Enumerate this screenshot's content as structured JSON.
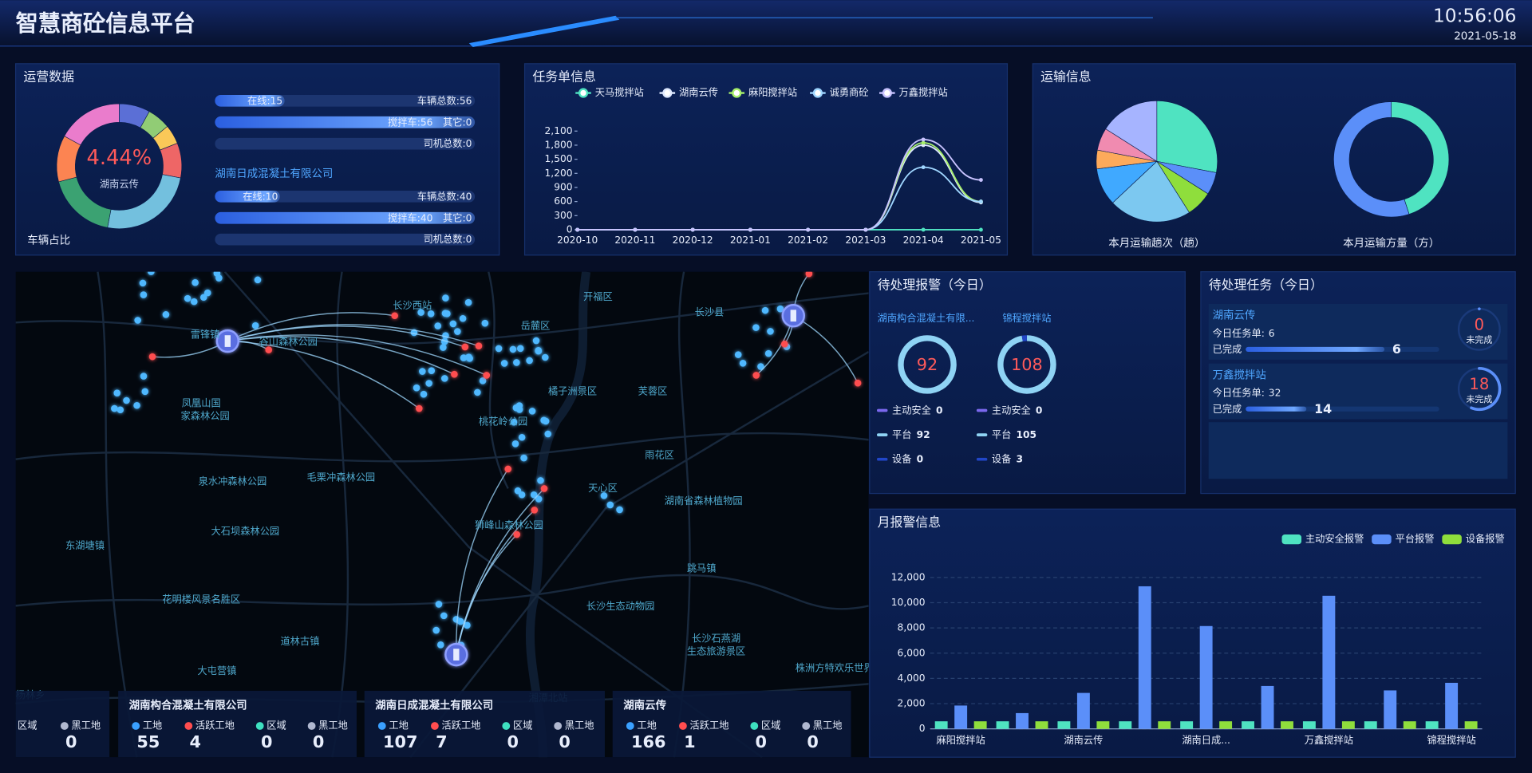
{
  "header": {
    "title": "智慧商砼信息平台",
    "time": "10:56:06",
    "date": "2021-05-18"
  },
  "operations": {
    "title": "运营数据",
    "groups": [
      {
        "online": {
          "label": "在线:",
          "value": 15
        },
        "total": {
          "label": "车辆总数:",
          "value": 56
        },
        "mixer": {
          "label": "搅拌车:",
          "value": 56
        },
        "other": {
          "label": "其它:",
          "value": 0
        },
        "drivers": {
          "label": "司机总数:",
          "value": 0
        }
      },
      {
        "name": "湖南日成混凝土有限公司",
        "online": {
          "label": "在线:",
          "value": 10
        },
        "total": {
          "label": "车辆总数:",
          "value": 40
        },
        "mixer": {
          "label": "搅拌车:",
          "value": 40
        },
        "other": {
          "label": "其它:",
          "value": 0
        },
        "drivers": {
          "label": "司机总数:",
          "value": 0
        }
      }
    ]
  },
  "transport": {
    "title": "运输信息"
  },
  "map": {
    "labels": [
      "长沙西站",
      "开福区",
      "长沙县",
      "岳麓区",
      "橘子洲景区",
      "芙蓉区",
      "桃花岭公园",
      "雨花区",
      "天心区",
      "湖南省森林植物园",
      "凤凰山国",
      "家森林公园",
      "泉水冲森林公园",
      "毛栗冲森林公园",
      "大石坝森林公园",
      "狮峰山森林公园",
      "花明楼风景名胜区",
      "长沙生态动物园",
      "长沙石燕湖",
      "生态旅游景区",
      "跳马镇",
      "道林古镇",
      "大屯营镇",
      "东湖塘镇",
      "株洲方特欢乐世界",
      "湘潭北站",
      "谷山森林公园",
      "雷锋镇",
      "杨林乡"
    ],
    "cards": [
      {
        "items": [
          {
            "label": "区域"
          },
          {
            "label": "黑工地",
            "value": 0
          }
        ]
      },
      {
        "name": "湖南构合混凝土有限公司",
        "items": [
          {
            "label": "工地",
            "value": 55
          },
          {
            "label": "活跃工地",
            "value": 4
          },
          {
            "label": "区域",
            "value": 0
          },
          {
            "label": "黑工地",
            "value": 0
          }
        ]
      },
      {
        "name": "湖南日成混凝土有限公司",
        "items": [
          {
            "label": "工地",
            "value": 107
          },
          {
            "label": "活跃工地",
            "value": 7
          },
          {
            "label": "区域",
            "value": 0
          },
          {
            "label": "黑工地",
            "value": 0
          }
        ]
      },
      {
        "name": "湖南云传",
        "items": [
          {
            "label": "工地",
            "value": 166
          },
          {
            "label": "活跃工地",
            "value": 1
          },
          {
            "label": "区域",
            "value": 0
          },
          {
            "label": "黑工地",
            "value": 0
          }
        ]
      }
    ]
  },
  "alarms": {
    "title": "待处理报警（今日）",
    "sites": [
      {
        "name": "湖南构合混凝土有限...",
        "total": 92,
        "items": [
          {
            "label": "主动安全",
            "value": 0
          },
          {
            "label": "平台",
            "value": 92
          },
          {
            "label": "设备",
            "value": 0
          }
        ]
      },
      {
        "name": "锦程搅拌站",
        "total": 108,
        "items": [
          {
            "label": "主动安全",
            "value": 0
          },
          {
            "label": "平台",
            "value": 105
          },
          {
            "label": "设备",
            "value": 3
          }
        ]
      }
    ]
  },
  "tasks": {
    "title": "待处理任务（今日）",
    "items": [
      {
        "name": "湖南云传",
        "total_label": "今日任务单:",
        "total": 6,
        "done_label": "已完成",
        "done": 6,
        "undone": 0,
        "undone_label": "未完成"
      },
      {
        "name": "万鑫搅拌站",
        "total_label": "今日任务单:",
        "total": 32,
        "done_label": "已完成",
        "done": 14,
        "undone": 18,
        "undone_label": "未完成"
      }
    ]
  },
  "chart_data": [
    {
      "type": "donut",
      "center_label": "4.44%",
      "center_sublabel": "湖南云传",
      "caption": "车辆占比",
      "values": [
        8,
        6,
        5,
        9,
        25,
        18,
        12,
        17
      ],
      "colors": [
        "#5b6fd6",
        "#91cc75",
        "#fac858",
        "#ee6666",
        "#73c0de",
        "#3ba272",
        "#fc8452",
        "#ea7ccc"
      ]
    },
    {
      "type": "line",
      "title": "任务单信息",
      "categories": [
        "2020-10",
        "2020-11",
        "2020-12",
        "2021-01",
        "2021-02",
        "2021-03",
        "2021-04",
        "2021-05"
      ],
      "series": [
        {
          "name": "天马搅拌站",
          "color": "#4fe3c1",
          "values": [
            0,
            0,
            0,
            0,
            0,
            0,
            0,
            0
          ]
        },
        {
          "name": "湖南云传",
          "color": "#dfe9ff",
          "values": [
            0,
            0,
            0,
            0,
            0,
            0,
            1800,
            580
          ]
        },
        {
          "name": "麻阳搅拌站",
          "color": "#a7f06b",
          "values": [
            0,
            0,
            0,
            0,
            0,
            0,
            1850,
            600
          ]
        },
        {
          "name": "诚勇商砼",
          "color": "#9fd6ff",
          "values": [
            0,
            0,
            0,
            0,
            0,
            0,
            1330,
            600
          ]
        },
        {
          "name": "万鑫搅拌站",
          "color": "#c8c3ff",
          "values": [
            0,
            0,
            0,
            0,
            0,
            0,
            1920,
            1060
          ]
        }
      ],
      "ylim": [
        0,
        2100
      ],
      "yticks": [
        0,
        300,
        600,
        900,
        {
          "value": 1200,
          "label": "1,200"
        },
        {
          "value": 1500,
          "label": "1,500"
        },
        {
          "value": 1800,
          "label": "1,800"
        },
        {
          "value": 2100,
          "label": "2,100"
        }
      ],
      "grid": false
    },
    {
      "type": "pie",
      "title": "本月运输趟次（趟）",
      "values": [
        28,
        6,
        7,
        22,
        10,
        5,
        6,
        16
      ],
      "colors": [
        "#4fe3c1",
        "#5b8ff9",
        "#8fde3c",
        "#7cc8f0",
        "#40a9ff",
        "#fdaa5b",
        "#f08bb0",
        "#a6b4ff"
      ]
    },
    {
      "type": "donut",
      "title": "本月运输方量（方）",
      "values": [
        45,
        55
      ],
      "colors": [
        "#4fe3c1",
        "#5b8ff9"
      ]
    },
    {
      "type": "bar",
      "title": "月报警信息",
      "categories": [
        "麻阳搅拌站",
        null,
        "湖南云传",
        null,
        "湖南日成...",
        null,
        "万鑫搅拌站",
        null,
        "锦程搅拌站"
      ],
      "series": [
        {
          "name": "主动安全报警",
          "color": "#4fe3c1",
          "values": [
            600,
            600,
            600,
            600,
            600,
            600,
            600,
            600,
            600
          ]
        },
        {
          "name": "平台报警",
          "color": "#5b8ff9",
          "values": [
            1850,
            1250,
            2850,
            11300,
            8150,
            3400,
            10550,
            3050,
            3650
          ]
        },
        {
          "name": "设备报警",
          "color": "#8fde3c",
          "values": [
            600,
            600,
            600,
            600,
            600,
            600,
            600,
            600,
            600
          ]
        }
      ],
      "ylim": [
        0,
        12000
      ],
      "yticks": [
        0,
        {
          "value": 2000,
          "label": "2,000"
        },
        {
          "value": 4000,
          "label": "4,000"
        },
        {
          "value": 6000,
          "label": "6,000"
        },
        {
          "value": 8000,
          "label": "8,000"
        },
        {
          "value": 10000,
          "label": "10,000"
        },
        {
          "value": 12000,
          "label": "12,000"
        }
      ],
      "grid": true
    }
  ]
}
